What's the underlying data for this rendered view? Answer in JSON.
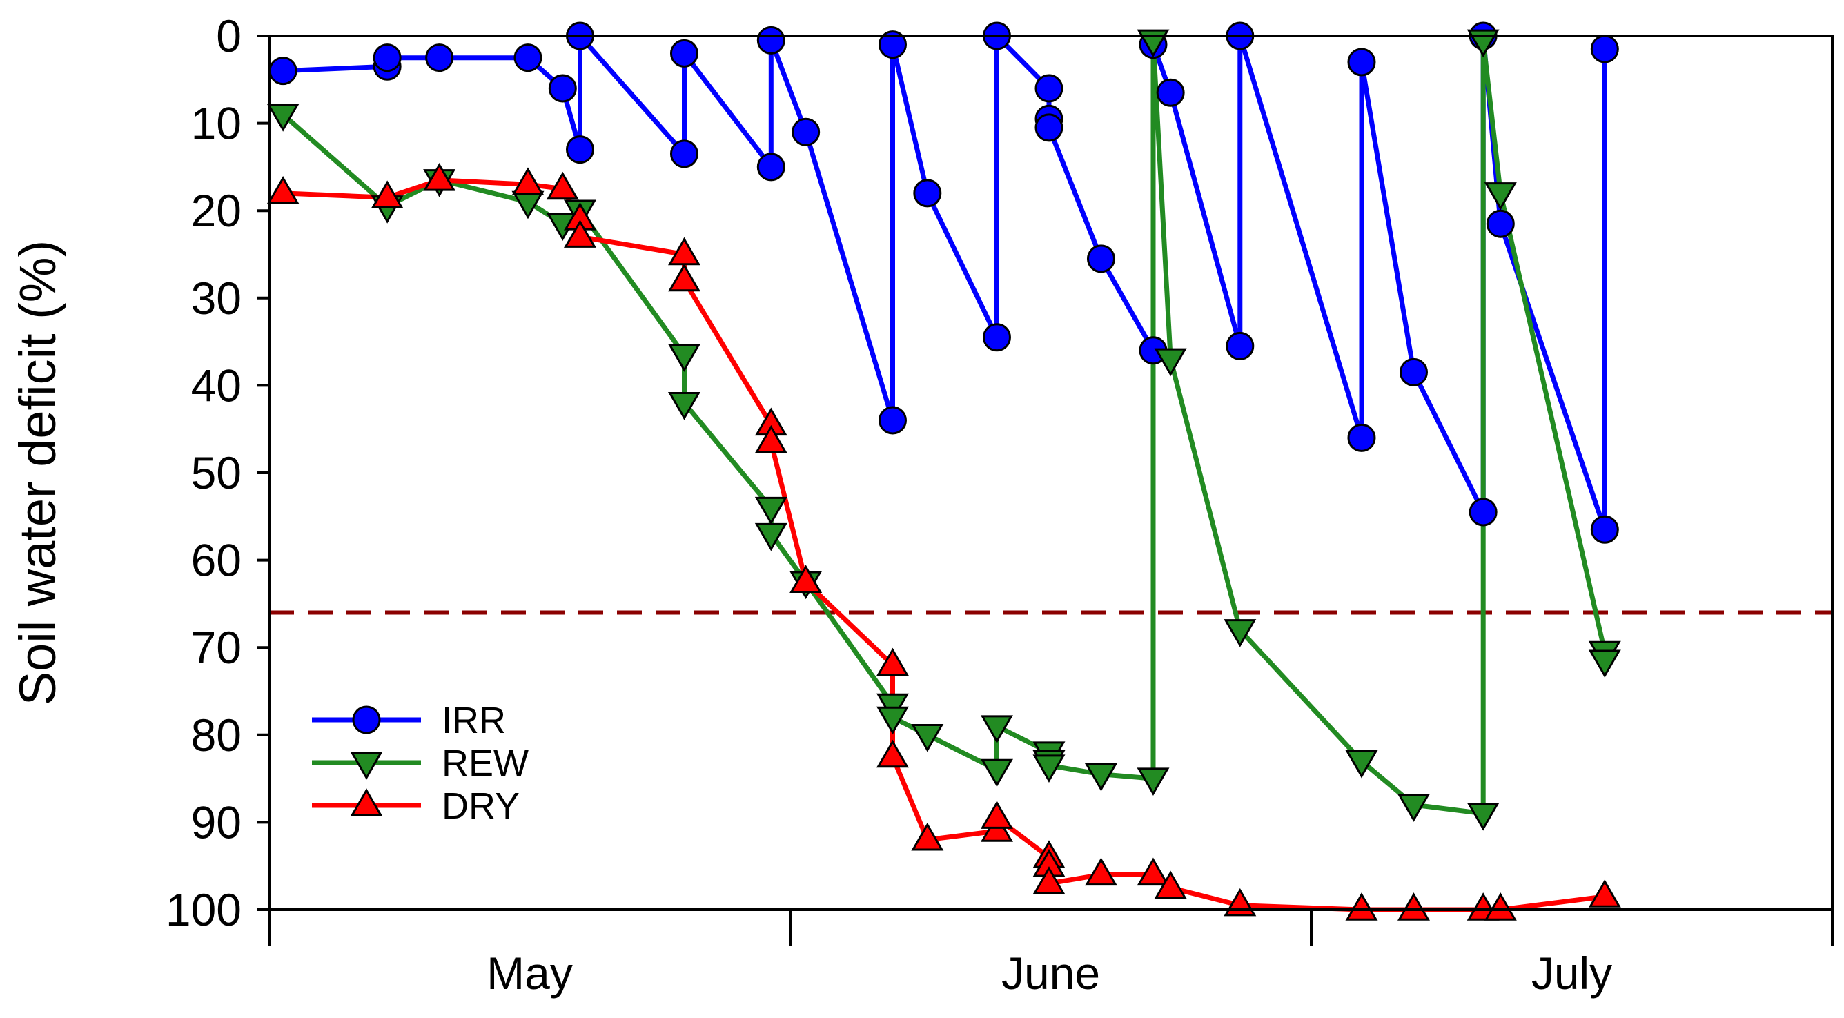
{
  "chart_data": {
    "type": "line",
    "xlabel": "",
    "ylabel": "Soil water deficit (%)",
    "xlim": [
      0,
      90
    ],
    "ylim": [
      0,
      100
    ],
    "y_inverted": true,
    "y_ticks": [
      0,
      10,
      20,
      30,
      40,
      50,
      60,
      70,
      80,
      90,
      100
    ],
    "x_month_labels": [
      {
        "label": "May",
        "x": 15
      },
      {
        "label": "June",
        "x": 45
      },
      {
        "label": "July",
        "x": 75
      }
    ],
    "x_ticks": [
      0,
      30,
      60,
      90
    ],
    "grid": false,
    "legend_position": "bottom-left",
    "threshold_line": {
      "y": 66,
      "color": "#8b0000",
      "style": "dashed"
    },
    "series": [
      {
        "name": "IRR",
        "color": "#0000ff",
        "marker": "circle",
        "marker_color": "#0000ff",
        "points": [
          [
            0.8,
            4
          ],
          [
            6.8,
            3.5
          ],
          [
            6.8,
            2.5
          ],
          [
            9.8,
            2.5
          ],
          [
            14.9,
            2.5
          ],
          [
            16.9,
            6
          ],
          [
            17.9,
            13
          ],
          [
            17.9,
            0
          ],
          [
            23.9,
            13.5
          ],
          [
            23.9,
            2
          ],
          [
            28.9,
            15
          ],
          [
            28.9,
            0.5
          ],
          [
            30.9,
            11
          ],
          [
            35.9,
            44
          ],
          [
            35.9,
            1
          ],
          [
            37.9,
            18
          ],
          [
            41.9,
            34.5
          ],
          [
            41.9,
            0
          ],
          [
            44.9,
            6
          ],
          [
            44.9,
            9.5
          ],
          [
            44.9,
            10.5
          ],
          [
            47.9,
            25.5
          ],
          [
            50.9,
            36
          ],
          [
            50.9,
            1
          ],
          [
            51.9,
            6.5
          ],
          [
            55.9,
            35.5
          ],
          [
            55.9,
            0
          ],
          [
            62.9,
            46
          ],
          [
            62.9,
            3
          ],
          [
            65.9,
            38.5
          ],
          [
            69.9,
            54.5
          ],
          [
            69.9,
            0
          ],
          [
            70.9,
            21.5
          ],
          [
            76.9,
            56.5
          ],
          [
            76.9,
            1.5
          ]
        ]
      },
      {
        "name": "REW",
        "color": "#228b22",
        "marker": "triangle-down",
        "marker_color": "#228b22",
        "points": [
          [
            0.8,
            9
          ],
          [
            6.8,
            19.5
          ],
          [
            9.8,
            16.5
          ],
          [
            14.9,
            19
          ],
          [
            16.9,
            21.5
          ],
          [
            17.9,
            20
          ],
          [
            23.9,
            36.5
          ],
          [
            23.9,
            42
          ],
          [
            28.9,
            54
          ],
          [
            28.9,
            57
          ],
          [
            30.9,
            62.5
          ],
          [
            35.9,
            76.5
          ],
          [
            35.9,
            78
          ],
          [
            37.9,
            80
          ],
          [
            41.9,
            84
          ],
          [
            41.9,
            79
          ],
          [
            44.9,
            82
          ],
          [
            44.9,
            83
          ],
          [
            44.9,
            83.5
          ],
          [
            47.9,
            84.5
          ],
          [
            50.9,
            85
          ],
          [
            50.9,
            0.5
          ],
          [
            51.9,
            37
          ],
          [
            55.9,
            68
          ],
          [
            62.9,
            83
          ],
          [
            65.9,
            88
          ],
          [
            69.9,
            89
          ],
          [
            69.9,
            0.5
          ],
          [
            70.9,
            18
          ],
          [
            76.9,
            70.5
          ],
          [
            76.9,
            71.5
          ]
        ]
      },
      {
        "name": "DRY",
        "color": "#ff0000",
        "marker": "triangle-up",
        "marker_color": "#ff0000",
        "points": [
          [
            0.8,
            18
          ],
          [
            6.8,
            18.5
          ],
          [
            9.8,
            16.5
          ],
          [
            14.9,
            17
          ],
          [
            16.9,
            17.5
          ],
          [
            17.9,
            21
          ],
          [
            17.9,
            23
          ],
          [
            23.9,
            25
          ],
          [
            23.9,
            28
          ],
          [
            28.9,
            44.5
          ],
          [
            28.9,
            46.5
          ],
          [
            30.9,
            62.5
          ],
          [
            35.9,
            72
          ],
          [
            35.9,
            82.5
          ],
          [
            37.9,
            92
          ],
          [
            41.9,
            91
          ],
          [
            41.9,
            89.5
          ],
          [
            44.9,
            94
          ],
          [
            44.9,
            95
          ],
          [
            44.9,
            97
          ],
          [
            47.9,
            96
          ],
          [
            50.9,
            96
          ],
          [
            51.9,
            97.5
          ],
          [
            55.9,
            99.5
          ],
          [
            62.9,
            100
          ],
          [
            65.9,
            100
          ],
          [
            69.9,
            100
          ],
          [
            70.9,
            100
          ],
          [
            76.9,
            98.5
          ]
        ]
      }
    ]
  }
}
